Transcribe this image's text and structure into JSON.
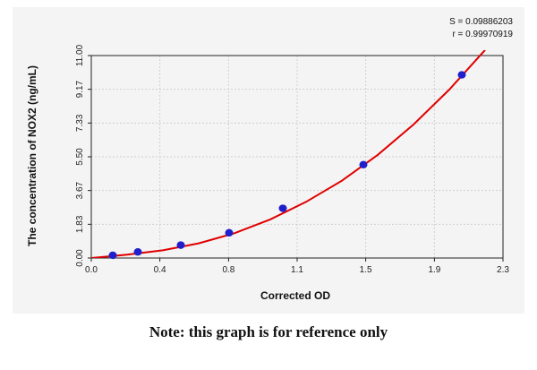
{
  "chart_data": {
    "type": "scatter",
    "xlabel": "Corrected OD",
    "ylabel": "The concentration of NOX2 (ng/mL)",
    "xlim": [
      0.0,
      2.3
    ],
    "ylim": [
      0.0,
      11.0
    ],
    "x_ticks": [
      "0.0",
      "0.4",
      "0.8",
      "1.1",
      "1.5",
      "1.9",
      "2.3"
    ],
    "x_tick_values": [
      0.0,
      0.383,
      0.767,
      1.15,
      1.533,
      1.917,
      2.3
    ],
    "y_ticks": [
      "0.00",
      "1.83",
      "3.67",
      "5.50",
      "7.33",
      "9.17",
      "11.00"
    ],
    "y_tick_values": [
      0.0,
      1.833,
      3.667,
      5.5,
      7.333,
      9.167,
      11.0
    ],
    "grid": true,
    "points": {
      "x": [
        0.12,
        0.26,
        0.5,
        0.77,
        1.07,
        1.52,
        2.07
      ],
      "y": [
        0.15,
        0.33,
        0.7,
        1.37,
        2.7,
        5.07,
        9.95
      ],
      "color": "#1f1fcc"
    },
    "fit_curve": {
      "color": "#e00000",
      "x": [
        0.0,
        0.2,
        0.4,
        0.6,
        0.8,
        1.0,
        1.2,
        1.4,
        1.6,
        1.8,
        2.0,
        2.2
      ],
      "y": [
        0.0,
        0.18,
        0.42,
        0.8,
        1.35,
        2.1,
        3.05,
        4.2,
        5.6,
        7.25,
        9.15,
        11.3
      ]
    },
    "annotations": {
      "s_value": "S = 0.09886203",
      "r_value": "r = 0.99970919"
    }
  },
  "note": "Note: this graph is for reference only"
}
